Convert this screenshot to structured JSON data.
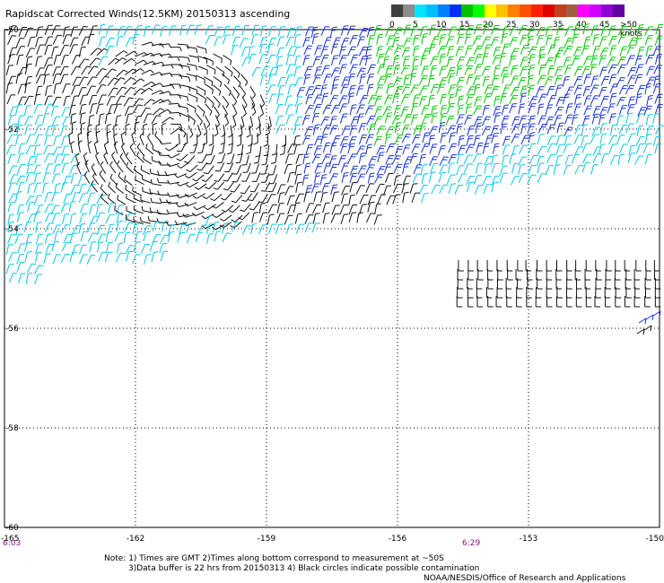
{
  "header": {
    "title": "Rapidscat Corrected Winds(12.5KM) 20150313 ascending"
  },
  "colorbar": {
    "segments": [
      {
        "label": "0",
        "colors": [
          "#404040",
          "#8c8c8c"
        ]
      },
      {
        "label": "5",
        "colors": [
          "#00e5ff",
          "#00bfff"
        ]
      },
      {
        "label": "10",
        "colors": [
          "#0080ff",
          "#0030ff"
        ]
      },
      {
        "label": "15",
        "colors": [
          "#00c000",
          "#00ff00"
        ]
      },
      {
        "label": "20",
        "colors": [
          "#ffff00",
          "#ffc000"
        ]
      },
      {
        "label": "25",
        "colors": [
          "#ff8000",
          "#ff5000"
        ]
      },
      {
        "label": "30",
        "colors": [
          "#ff2000",
          "#e00000"
        ]
      },
      {
        "label": "35",
        "colors": [
          "#c04020",
          "#a06040"
        ]
      },
      {
        "label": "40",
        "colors": [
          "#ff00ff",
          "#d000ff"
        ]
      },
      {
        "label": "45",
        "colors": [
          "#9000d0",
          "#6000a0"
        ]
      }
    ],
    "last_label": ">50 knots"
  },
  "axes": {
    "lat_labels": [
      "-50",
      "-52",
      "-54",
      "-56",
      "-58",
      "-60"
    ],
    "lon_labels": [
      "-165",
      "-162",
      "-159",
      "-156",
      "-153",
      "-150"
    ],
    "time_labels": [
      "6:03",
      "6:29"
    ]
  },
  "notes": {
    "line1": "Note: 1) Times are GMT 2)Times along bottom correspond to measurement at ~50S",
    "line2": "3)Data buffer is 22 hrs from 20150313 4) Black circles indicate possible contamination",
    "line3": "NOAA/NESDIS/Office of Research and Applications"
  }
}
